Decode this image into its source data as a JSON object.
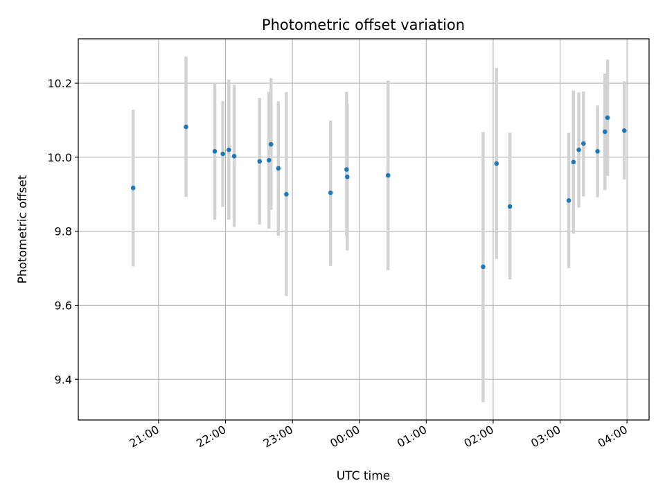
{
  "chart_data": {
    "type": "scatter",
    "title": "Photometric offset variation",
    "xlabel": "UTC time",
    "ylabel": "Photometric offset",
    "x_unit": "UTC time (hours, relative to 00:00; negative = previous evening)",
    "xlim": [
      -4.2,
      4.33
    ],
    "ylim": [
      9.29,
      10.32
    ],
    "grid": true,
    "legend": "none",
    "colors": {
      "point": "#1f77b4",
      "errorbar": "#d3d3d3",
      "grid": "#b0b0b0"
    },
    "x_ticks": [
      {
        "value": -3,
        "label": "21:00"
      },
      {
        "value": -2,
        "label": "22:00"
      },
      {
        "value": -1,
        "label": "23:00"
      },
      {
        "value": 0,
        "label": "00:00"
      },
      {
        "value": 1,
        "label": "01:00"
      },
      {
        "value": 2,
        "label": "02:00"
      },
      {
        "value": 3,
        "label": "03:00"
      },
      {
        "value": 4,
        "label": "04:00"
      }
    ],
    "y_ticks": [
      {
        "value": 9.4,
        "label": "9.4"
      },
      {
        "value": 9.6,
        "label": "9.6"
      },
      {
        "value": 9.8,
        "label": "9.8"
      },
      {
        "value": 10.0,
        "label": "10.0"
      },
      {
        "value": 10.2,
        "label": "10.2"
      }
    ],
    "points": [
      {
        "x": -3.38,
        "y": 9.917,
        "err_low": 9.705,
        "err_high": 10.128
      },
      {
        "x": -2.59,
        "y": 10.082,
        "err_low": 9.893,
        "err_high": 10.272
      },
      {
        "x": -2.16,
        "y": 10.016,
        "err_low": 9.831,
        "err_high": 10.202
      },
      {
        "x": -2.04,
        "y": 10.009,
        "err_low": 9.866,
        "err_high": 10.152
      },
      {
        "x": -1.95,
        "y": 10.02,
        "err_low": 9.831,
        "err_high": 10.21
      },
      {
        "x": -1.87,
        "y": 10.003,
        "err_low": 9.811,
        "err_high": 10.196
      },
      {
        "x": -1.49,
        "y": 9.989,
        "err_low": 9.818,
        "err_high": 10.16
      },
      {
        "x": -1.35,
        "y": 9.992,
        "err_low": 9.807,
        "err_high": 10.177
      },
      {
        "x": -1.32,
        "y": 10.035,
        "err_low": 9.857,
        "err_high": 10.214
      },
      {
        "x": -1.21,
        "y": 9.97,
        "err_low": 9.788,
        "err_high": 10.151
      },
      {
        "x": -1.09,
        "y": 9.9,
        "err_low": 9.625,
        "err_high": 10.176
      },
      {
        "x": -0.43,
        "y": 9.904,
        "err_low": 9.706,
        "err_high": 10.099
      },
      {
        "x": -0.19,
        "y": 9.967,
        "err_low": 9.787,
        "err_high": 10.177
      },
      {
        "x": -0.18,
        "y": 9.947,
        "err_low": 9.748,
        "err_high": 10.145
      },
      {
        "x": 0.43,
        "y": 9.951,
        "err_low": 9.695,
        "err_high": 10.207
      },
      {
        "x": 1.85,
        "y": 9.704,
        "err_low": 9.338,
        "err_high": 10.068
      },
      {
        "x": 2.05,
        "y": 9.983,
        "err_low": 9.725,
        "err_high": 10.241
      },
      {
        "x": 2.25,
        "y": 9.867,
        "err_low": 9.67,
        "err_high": 10.066
      },
      {
        "x": 3.13,
        "y": 9.883,
        "err_low": 9.7,
        "err_high": 10.066
      },
      {
        "x": 3.2,
        "y": 9.987,
        "err_low": 9.794,
        "err_high": 10.18
      },
      {
        "x": 3.28,
        "y": 10.02,
        "err_low": 9.864,
        "err_high": 10.175
      },
      {
        "x": 3.35,
        "y": 10.037,
        "err_low": 9.894,
        "err_high": 10.178
      },
      {
        "x": 3.56,
        "y": 10.016,
        "err_low": 9.892,
        "err_high": 10.14
      },
      {
        "x": 3.67,
        "y": 10.069,
        "err_low": 9.911,
        "err_high": 10.226
      },
      {
        "x": 3.71,
        "y": 10.107,
        "err_low": 9.95,
        "err_high": 10.264
      },
      {
        "x": 3.96,
        "y": 10.072,
        "err_low": 9.94,
        "err_high": 10.205
      }
    ]
  }
}
